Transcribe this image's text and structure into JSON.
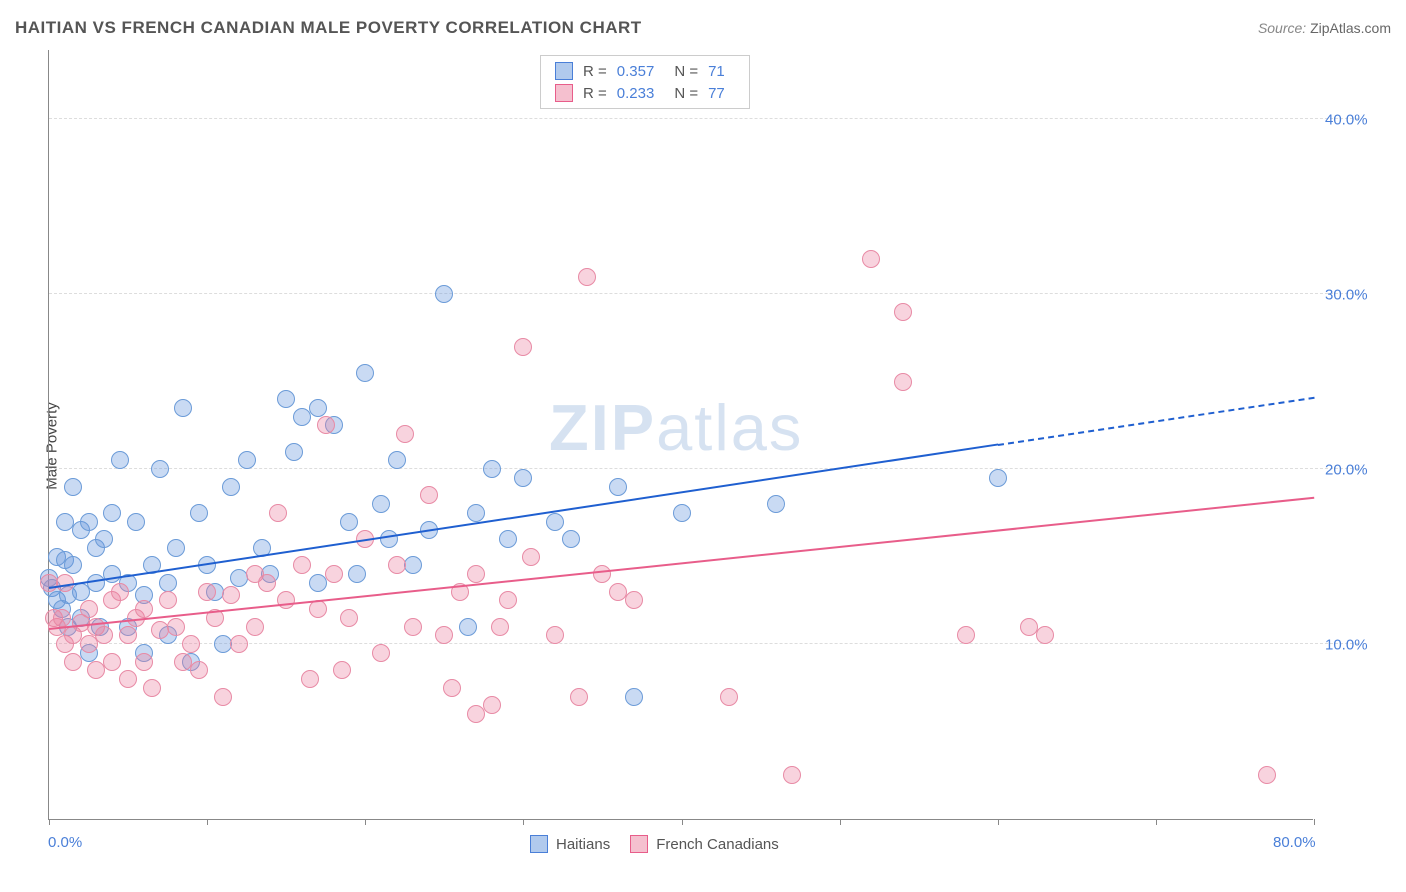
{
  "title": "HAITIAN VS FRENCH CANADIAN MALE POVERTY CORRELATION CHART",
  "source_label": "Source:",
  "source_value": "ZipAtlas.com",
  "ylabel": "Male Poverty",
  "watermark_bold": "ZIP",
  "watermark_rest": "atlas",
  "chart": {
    "type": "scatter",
    "background_color": "#ffffff",
    "grid_color": "#dddddd",
    "axis_color": "#888888",
    "tick_label_color": "#4a7fd8",
    "xlim": [
      0,
      80
    ],
    "ylim": [
      0,
      44
    ],
    "xticks": [
      0,
      10,
      20,
      30,
      40,
      50,
      60,
      70,
      80
    ],
    "xtick_labels_shown": {
      "0": "0.0%",
      "80": "80.0%"
    },
    "yticks": [
      10,
      20,
      30,
      40
    ],
    "ytick_labels": {
      "10": "10.0%",
      "20": "20.0%",
      "30": "30.0%",
      "40": "40.0%"
    },
    "marker_radius": 9,
    "marker_opacity": 0.5,
    "marker_border_width": 1,
    "series": [
      {
        "name": "Haitians",
        "fill_color": "rgba(100,150,220,0.35)",
        "stroke_color": "#6b9bd8",
        "trend_color": "#1f5fd0",
        "trend_dash_color": "#1f5fd0",
        "legend_swatch_fill": "rgba(100,150,220,0.5)",
        "legend_swatch_border": "#4a7fd8",
        "R": "0.357",
        "N": "71",
        "trend": {
          "x1": 0,
          "y1": 13.3,
          "x2_solid": 60,
          "y2_solid": 21.5,
          "x2_dash": 80,
          "y2_dash": 24.2
        },
        "points": [
          [
            0,
            13.8
          ],
          [
            0.2,
            13.2
          ],
          [
            0.5,
            15.0
          ],
          [
            0.5,
            12.5
          ],
          [
            0.8,
            12.0
          ],
          [
            1,
            14.8
          ],
          [
            1,
            17.0
          ],
          [
            1.2,
            11.0
          ],
          [
            1.2,
            12.8
          ],
          [
            1.5,
            19.0
          ],
          [
            1.5,
            14.5
          ],
          [
            2,
            16.5
          ],
          [
            2,
            13.0
          ],
          [
            2,
            11.5
          ],
          [
            2.5,
            17.0
          ],
          [
            2.5,
            9.5
          ],
          [
            3,
            15.5
          ],
          [
            3,
            13.5
          ],
          [
            3.2,
            11.0
          ],
          [
            3.5,
            16.0
          ],
          [
            4,
            17.5
          ],
          [
            4,
            14.0
          ],
          [
            4.5,
            20.5
          ],
          [
            5,
            13.5
          ],
          [
            5,
            11.0
          ],
          [
            5.5,
            17.0
          ],
          [
            6,
            9.5
          ],
          [
            6,
            12.8
          ],
          [
            6.5,
            14.5
          ],
          [
            7,
            20.0
          ],
          [
            7.5,
            10.5
          ],
          [
            7.5,
            13.5
          ],
          [
            8,
            15.5
          ],
          [
            8.5,
            23.5
          ],
          [
            9,
            9.0
          ],
          [
            9.5,
            17.5
          ],
          [
            10,
            14.5
          ],
          [
            10.5,
            13.0
          ],
          [
            11,
            10.0
          ],
          [
            11.5,
            19.0
          ],
          [
            12,
            13.8
          ],
          [
            12.5,
            20.5
          ],
          [
            13.5,
            15.5
          ],
          [
            14,
            14.0
          ],
          [
            15,
            24.0
          ],
          [
            15.5,
            21.0
          ],
          [
            16,
            23.0
          ],
          [
            17,
            23.5
          ],
          [
            17,
            13.5
          ],
          [
            18,
            22.5
          ],
          [
            19,
            17.0
          ],
          [
            19.5,
            14.0
          ],
          [
            20,
            25.5
          ],
          [
            21,
            18.0
          ],
          [
            21.5,
            16.0
          ],
          [
            22,
            20.5
          ],
          [
            23,
            14.5
          ],
          [
            24,
            16.5
          ],
          [
            25,
            30.0
          ],
          [
            26.5,
            11.0
          ],
          [
            27,
            17.5
          ],
          [
            28,
            20.0
          ],
          [
            29,
            16.0
          ],
          [
            30,
            19.5
          ],
          [
            32,
            17.0
          ],
          [
            33,
            16.0
          ],
          [
            36,
            19.0
          ],
          [
            37,
            7.0
          ],
          [
            40,
            17.5
          ],
          [
            46,
            18.0
          ],
          [
            60,
            19.5
          ]
        ]
      },
      {
        "name": "French Canadians",
        "fill_color": "rgba(235,130,160,0.35)",
        "stroke_color": "#e88aa5",
        "trend_color": "#e85d8a",
        "trend_dash_color": "#e85d8a",
        "legend_swatch_fill": "rgba(235,130,160,0.5)",
        "legend_swatch_border": "#e85d8a",
        "R": "0.233",
        "N": "77",
        "trend": {
          "x1": 0,
          "y1": 11.0,
          "x2_solid": 80,
          "y2_solid": 18.5,
          "x2_dash": 80,
          "y2_dash": 18.5
        },
        "points": [
          [
            0,
            13.5
          ],
          [
            0.3,
            11.5
          ],
          [
            0.5,
            11.0
          ],
          [
            0.8,
            11.5
          ],
          [
            1,
            10.0
          ],
          [
            1,
            13.5
          ],
          [
            1.5,
            10.5
          ],
          [
            1.5,
            9.0
          ],
          [
            2,
            11.2
          ],
          [
            2.5,
            10.0
          ],
          [
            2.5,
            12.0
          ],
          [
            3,
            8.5
          ],
          [
            3,
            11.0
          ],
          [
            3.5,
            10.5
          ],
          [
            4,
            12.5
          ],
          [
            4,
            9.0
          ],
          [
            4.5,
            13.0
          ],
          [
            5,
            8.0
          ],
          [
            5,
            10.5
          ],
          [
            5.5,
            11.5
          ],
          [
            6,
            12.0
          ],
          [
            6,
            9.0
          ],
          [
            6.5,
            7.5
          ],
          [
            7,
            10.8
          ],
          [
            7.5,
            12.5
          ],
          [
            8,
            11.0
          ],
          [
            8.5,
            9.0
          ],
          [
            9,
            10.0
          ],
          [
            9.5,
            8.5
          ],
          [
            10,
            13.0
          ],
          [
            10.5,
            11.5
          ],
          [
            11,
            7.0
          ],
          [
            11.5,
            12.8
          ],
          [
            12,
            10.0
          ],
          [
            13,
            14.0
          ],
          [
            13,
            11.0
          ],
          [
            13.8,
            13.5
          ],
          [
            14.5,
            17.5
          ],
          [
            15,
            12.5
          ],
          [
            16,
            14.5
          ],
          [
            16.5,
            8.0
          ],
          [
            17,
            12.0
          ],
          [
            17.5,
            22.5
          ],
          [
            18,
            14.0
          ],
          [
            18.5,
            8.5
          ],
          [
            19,
            11.5
          ],
          [
            20,
            16.0
          ],
          [
            21,
            9.5
          ],
          [
            22,
            14.5
          ],
          [
            22.5,
            22.0
          ],
          [
            23,
            11.0
          ],
          [
            24,
            18.5
          ],
          [
            25,
            10.5
          ],
          [
            25.5,
            7.5
          ],
          [
            26,
            13.0
          ],
          [
            27,
            14.0
          ],
          [
            27,
            6.0
          ],
          [
            28,
            6.5
          ],
          [
            28.5,
            11.0
          ],
          [
            29,
            12.5
          ],
          [
            30,
            27.0
          ],
          [
            30.5,
            15.0
          ],
          [
            32,
            10.5
          ],
          [
            33.5,
            7.0
          ],
          [
            34,
            31.0
          ],
          [
            35,
            14.0
          ],
          [
            36,
            13.0
          ],
          [
            37,
            12.5
          ],
          [
            43,
            7.0
          ],
          [
            47,
            2.5
          ],
          [
            52,
            32.0
          ],
          [
            54,
            29.0
          ],
          [
            54,
            25.0
          ],
          [
            58,
            10.5
          ],
          [
            62,
            11.0
          ],
          [
            63,
            10.5
          ],
          [
            77,
            2.5
          ]
        ]
      }
    ]
  },
  "legend_top": {
    "R_label": "R =",
    "N_label": "N ="
  },
  "legend_bottom_labels": [
    "Haitians",
    "French Canadians"
  ]
}
